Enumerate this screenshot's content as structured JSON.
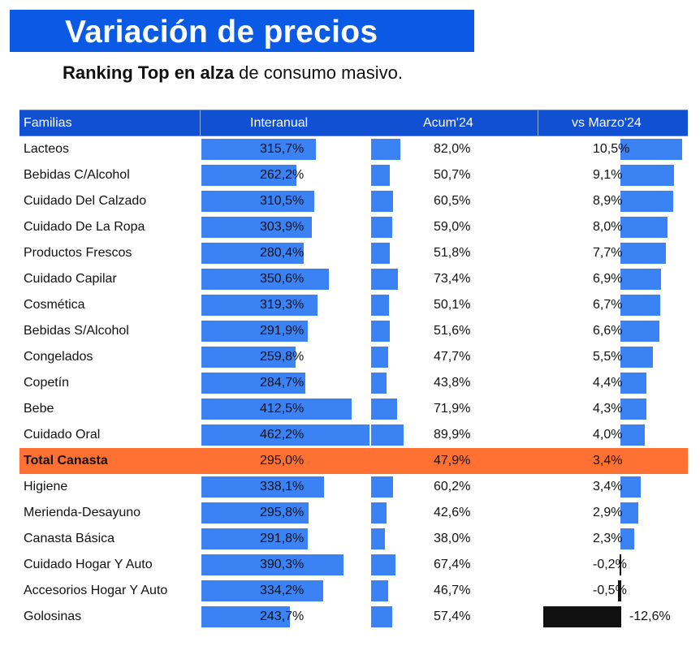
{
  "title": "Variación de precios",
  "subtitle": {
    "bold": "Ranking Top en alza",
    "rest": " de consumo masivo."
  },
  "table": {
    "headers": [
      "Familias",
      "Interanual",
      "Acum'24",
      "vs Marzo'24"
    ]
  },
  "chart_data": {
    "type": "table",
    "columns": [
      "Familias",
      "Interanual",
      "Acum'24",
      "vs Marzo'24"
    ],
    "rows": [
      {
        "familia": "Lacteos",
        "interanual": 315.7,
        "acum": 82.0,
        "vs_marzo": 10.5,
        "interanual_label": "315,7%",
        "acum_label": "82,0%",
        "vs_marzo_label": "10,5%"
      },
      {
        "familia": "Bebidas C/Alcohol",
        "interanual": 262.2,
        "acum": 50.7,
        "vs_marzo": 9.1,
        "interanual_label": "262,2%",
        "acum_label": "50,7%",
        "vs_marzo_label": "9,1%"
      },
      {
        "familia": "Cuidado Del Calzado",
        "interanual": 310.5,
        "acum": 60.5,
        "vs_marzo": 8.9,
        "interanual_label": "310,5%",
        "acum_label": "60,5%",
        "vs_marzo_label": "8,9%"
      },
      {
        "familia": "Cuidado De La Ropa",
        "interanual": 303.9,
        "acum": 59.0,
        "vs_marzo": 8.0,
        "interanual_label": "303,9%",
        "acum_label": "59,0%",
        "vs_marzo_label": "8,0%"
      },
      {
        "familia": "Productos Frescos",
        "interanual": 280.4,
        "acum": 51.8,
        "vs_marzo": 7.7,
        "interanual_label": "280,4%",
        "acum_label": "51,8%",
        "vs_marzo_label": "7,7%"
      },
      {
        "familia": "Cuidado Capilar",
        "interanual": 350.6,
        "acum": 73.4,
        "vs_marzo": 6.9,
        "interanual_label": "350,6%",
        "acum_label": "73,4%",
        "vs_marzo_label": "6,9%"
      },
      {
        "familia": "Cosmética",
        "interanual": 319.3,
        "acum": 50.1,
        "vs_marzo": 6.7,
        "interanual_label": "319,3%",
        "acum_label": "50,1%",
        "vs_marzo_label": "6,7%"
      },
      {
        "familia": "Bebidas S/Alcohol",
        "interanual": 291.9,
        "acum": 51.6,
        "vs_marzo": 6.6,
        "interanual_label": "291,9%",
        "acum_label": "51,6%",
        "vs_marzo_label": "6,6%"
      },
      {
        "familia": "Congelados",
        "interanual": 259.8,
        "acum": 47.7,
        "vs_marzo": 5.5,
        "interanual_label": "259,8%",
        "acum_label": "47,7%",
        "vs_marzo_label": "5,5%"
      },
      {
        "familia": "Copetín",
        "interanual": 284.7,
        "acum": 43.8,
        "vs_marzo": 4.4,
        "interanual_label": "284,7%",
        "acum_label": "43,8%",
        "vs_marzo_label": "4,4%"
      },
      {
        "familia": "Bebe",
        "interanual": 412.5,
        "acum": 71.9,
        "vs_marzo": 4.3,
        "interanual_label": "412,5%",
        "acum_label": "71,9%",
        "vs_marzo_label": "4,3%"
      },
      {
        "familia": "Cuidado Oral",
        "interanual": 462.2,
        "acum": 89.9,
        "vs_marzo": 4.0,
        "interanual_label": "462,2%",
        "acum_label": "89,9%",
        "vs_marzo_label": "4,0%"
      },
      {
        "familia": "Total Canasta",
        "interanual": 295.0,
        "acum": 47.9,
        "vs_marzo": 3.4,
        "interanual_label": "295,0%",
        "acum_label": "47,9%",
        "vs_marzo_label": "3,4%",
        "highlight": true
      },
      {
        "familia": "Higiene",
        "interanual": 338.1,
        "acum": 60.2,
        "vs_marzo": 3.4,
        "interanual_label": "338,1%",
        "acum_label": "60,2%",
        "vs_marzo_label": "3,4%"
      },
      {
        "familia": "Merienda-Desayuno",
        "interanual": 295.8,
        "acum": 42.6,
        "vs_marzo": 2.9,
        "interanual_label": "295,8%",
        "acum_label": "42,6%",
        "vs_marzo_label": "2,9%"
      },
      {
        "familia": "Canasta Básica",
        "interanual": 291.8,
        "acum": 38.0,
        "vs_marzo": 2.3,
        "interanual_label": "291,8%",
        "acum_label": "38,0%",
        "vs_marzo_label": "2,3%"
      },
      {
        "familia": "Cuidado Hogar Y Auto",
        "interanual": 390.3,
        "acum": 67.4,
        "vs_marzo": -0.2,
        "interanual_label": "390,3%",
        "acum_label": "67,4%",
        "vs_marzo_label": "-0,2%"
      },
      {
        "familia": "Accesorios Hogar Y Auto",
        "interanual": 334.2,
        "acum": 46.7,
        "vs_marzo": -0.5,
        "interanual_label": "334,2%",
        "acum_label": "46,7%",
        "vs_marzo_label": "-0,5%"
      },
      {
        "familia": "Golosinas",
        "interanual": 243.7,
        "acum": 57.4,
        "vs_marzo": -12.6,
        "interanual_label": "243,7%",
        "acum_label": "57,4%",
        "vs_marzo_label": "-12,6%"
      }
    ]
  },
  "colors": {
    "title_bg": "#0a5ae6",
    "header_bg": "#1150d3",
    "bar": "#3b82f5",
    "negative_bar": "#111111",
    "highlight_row": "#ff7033"
  }
}
